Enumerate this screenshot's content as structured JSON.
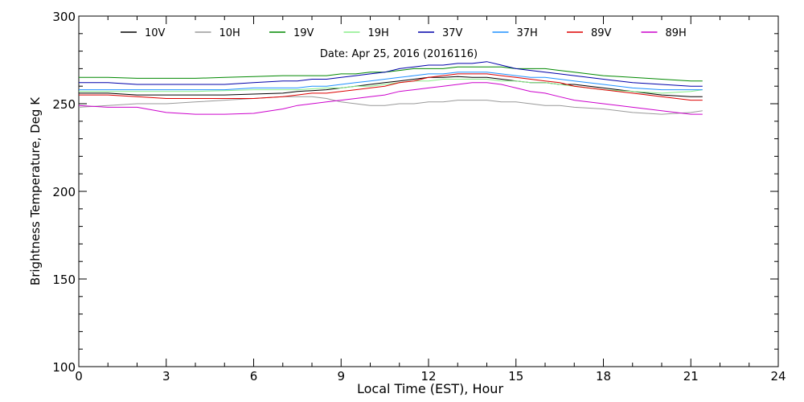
{
  "chart_data": {
    "type": "line",
    "title": "Date: Apr 25, 2016 (2016116)",
    "xlabel": "Local Time (EST), Hour",
    "ylabel": "Brightness Temperature, Deg K",
    "xlim": [
      0,
      24
    ],
    "ylim": [
      100,
      300
    ],
    "xticks": [
      0,
      3,
      6,
      9,
      12,
      15,
      18,
      21,
      24
    ],
    "xtick_labels": [
      "0",
      "3",
      "6",
      "9",
      "12",
      "15",
      "18",
      "21",
      "24"
    ],
    "yticks": [
      100,
      150,
      200,
      250,
      300
    ],
    "ytick_labels": [
      "100",
      "150",
      "200",
      "250",
      "300"
    ],
    "grid": false,
    "legend": "top, horizontal inside plot",
    "x": [
      0,
      1,
      2,
      3,
      4,
      5,
      6,
      7,
      7.5,
      8,
      8.5,
      9,
      9.5,
      10,
      10.5,
      11,
      11.5,
      12,
      12.5,
      13,
      13.5,
      14,
      14.5,
      15,
      15.5,
      16,
      16.5,
      17,
      18,
      19,
      20,
      21,
      21.4
    ],
    "series": [
      {
        "name": "10V",
        "color": "#000000",
        "values": [
          256,
          256,
          255,
          255,
          255,
          255,
          255.5,
          256,
          257,
          257.5,
          258,
          259,
          260,
          261,
          262,
          263,
          264,
          265,
          265,
          265.5,
          265,
          265,
          264,
          263,
          262,
          262,
          261,
          261,
          259,
          257,
          255,
          254,
          254
        ]
      },
      {
        "name": "10H",
        "color": "#999999",
        "values": [
          248,
          249,
          250,
          250,
          251,
          252,
          253,
          254,
          254,
          254,
          253,
          251,
          250,
          249,
          249,
          250,
          250,
          251,
          251,
          252,
          252,
          252,
          251,
          251,
          250,
          249,
          249,
          248,
          247,
          245,
          244,
          245,
          246
        ]
      },
      {
        "name": "19V",
        "color": "#008800",
        "values": [
          265,
          265,
          264.5,
          264.5,
          264.5,
          265,
          265.5,
          266,
          266,
          266,
          266,
          267,
          267,
          268,
          268,
          269,
          270,
          270,
          270,
          271,
          271,
          271,
          271,
          270,
          270,
          270,
          269,
          268,
          266,
          265,
          264,
          263,
          263
        ]
      },
      {
        "name": "19H",
        "color": "#88ee88",
        "values": [
          257,
          257,
          257,
          257,
          257,
          257.5,
          258,
          258,
          258,
          258.5,
          259,
          259,
          260,
          260,
          261,
          262,
          263,
          263,
          264,
          264,
          264,
          264,
          263,
          263,
          262,
          262,
          261,
          260,
          258,
          257,
          256,
          257,
          258
        ]
      },
      {
        "name": "37V",
        "color": "#0000aa",
        "values": [
          262,
          262,
          261,
          261,
          261,
          261,
          262,
          263,
          263,
          264,
          264,
          265,
          266,
          267,
          268,
          270,
          271,
          272,
          272,
          273,
          273,
          274,
          272,
          270,
          269,
          268,
          267,
          266,
          264,
          262,
          261,
          260,
          260
        ]
      },
      {
        "name": "37H",
        "color": "#1e90ff",
        "values": [
          258,
          258,
          258,
          258,
          258,
          258,
          259,
          259,
          259,
          260,
          260,
          261,
          262,
          263,
          264,
          265,
          266,
          267,
          267,
          268,
          268,
          268,
          267,
          266,
          265,
          265,
          264,
          263,
          261,
          259,
          258,
          258,
          258
        ]
      },
      {
        "name": "89V",
        "color": "#dd0000",
        "values": [
          255,
          255,
          254,
          253,
          253,
          253,
          253,
          254,
          255,
          256,
          256,
          257,
          258,
          259,
          260,
          262,
          263,
          265,
          266,
          267,
          267,
          267,
          266,
          265,
          264,
          263,
          262,
          260,
          258,
          256,
          254,
          252,
          252
        ]
      },
      {
        "name": "89H",
        "color": "#cc00cc",
        "values": [
          249,
          248,
          248,
          245,
          244,
          244,
          244.5,
          247,
          249,
          250,
          251,
          252,
          253,
          254,
          255,
          257,
          258,
          259,
          260,
          261,
          262,
          262,
          261,
          259,
          257,
          256,
          254,
          252,
          250,
          248,
          246,
          244,
          244
        ]
      }
    ]
  }
}
